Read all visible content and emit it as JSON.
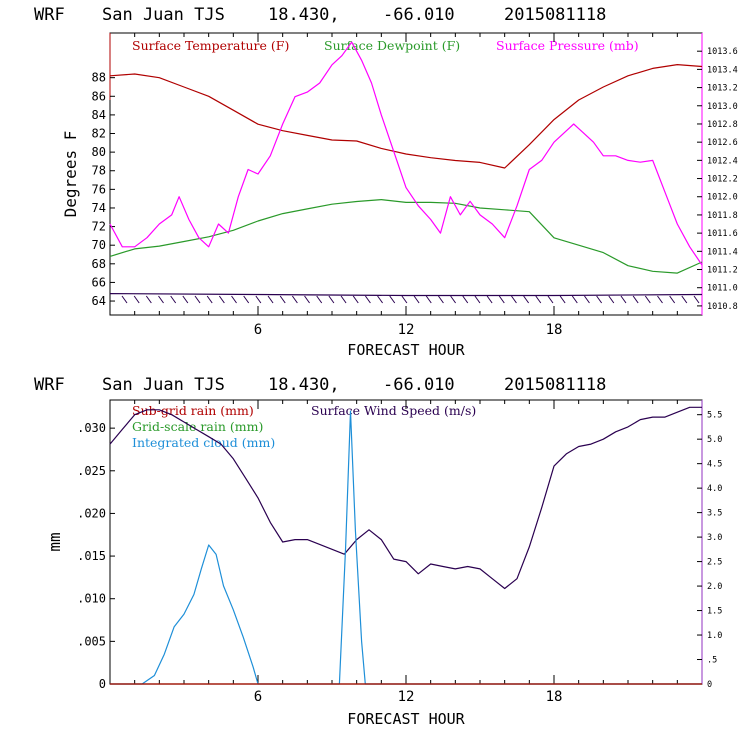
{
  "top": {
    "header": {
      "model": "WRF",
      "site": "San Juan TJS",
      "lat": "18.430,",
      "lon": "-66.010",
      "run": "2015081118"
    },
    "xlabel": "FORECAST HOUR",
    "ylabel": "Degrees F",
    "legend": [
      {
        "label": "Surface Temperature (F)",
        "color": "#b00000"
      },
      {
        "label": "Surface Dewpoint (F)",
        "color": "#2a9a2a"
      },
      {
        "label": "Surface Pressure (mb)",
        "color": "#ff00ff"
      }
    ]
  },
  "bottom": {
    "header": {
      "model": "WRF",
      "site": "San Juan TJS",
      "lat": "18.430,",
      "lon": "-66.010",
      "run": "2015081118"
    },
    "xlabel": "FORECAST HOUR",
    "ylabel": "mm",
    "legend": [
      {
        "label": "Sub-grid rain (mm)",
        "color": "#b00000"
      },
      {
        "label": "Surface Wind Speed (m/s)",
        "color": "#2a0050"
      },
      {
        "label": "Grid-scale rain (mm)",
        "color": "#2a9a2a"
      },
      {
        "label": "Integrated cloud (mm)",
        "color": "#1e8fd8"
      }
    ]
  },
  "chart_data": [
    {
      "type": "line",
      "xlabel": "FORECAST HOUR",
      "ylabel": "Degrees F",
      "xlim": [
        0,
        24
      ],
      "xticks": [
        6,
        12,
        18
      ],
      "ylim": [
        62.5,
        92.8
      ],
      "yticks": [
        64,
        66,
        68,
        70,
        72,
        74,
        76,
        78,
        80,
        82,
        84,
        86,
        88
      ],
      "y2lim": [
        1010.7,
        1013.8
      ],
      "y2ticks": [
        "1010.8",
        "1011.0",
        "1011.2",
        "1011.4",
        "1011.6",
        "1011.8",
        "1012.0",
        "1012.2",
        "1012.4",
        "1012.6",
        "1012.8",
        "1013.0",
        "1013.2",
        "1013.4",
        "1013.6"
      ],
      "series": [
        {
          "name": "Surface Temperature (F)",
          "axis": "left",
          "color": "#b00000",
          "x": [
            0,
            1,
            2,
            3,
            4,
            5,
            6,
            7,
            8,
            9,
            10,
            11,
            12,
            13,
            14,
            15,
            16,
            17,
            18,
            19,
            20,
            21,
            22,
            23,
            24
          ],
          "y": [
            88.2,
            88.4,
            88,
            87,
            86,
            84.5,
            83,
            82.3,
            81.8,
            81.3,
            81.2,
            80.4,
            79.8,
            79.4,
            79.1,
            78.9,
            78.3,
            80.8,
            83.5,
            85.6,
            87,
            88.2,
            89,
            89.4,
            89.2
          ]
        },
        {
          "name": "Surface Dewpoint (F)",
          "axis": "left",
          "color": "#2a9a2a",
          "x": [
            0,
            1,
            2,
            3,
            4,
            5,
            6,
            7,
            8,
            9,
            10,
            11,
            12,
            13,
            14,
            15,
            16,
            17,
            18,
            19,
            20,
            21,
            22,
            23,
            24
          ],
          "y": [
            68.8,
            69.6,
            69.9,
            70.4,
            70.9,
            71.6,
            72.6,
            73.4,
            73.9,
            74.4,
            74.7,
            74.9,
            74.6,
            74.6,
            74.5,
            74,
            73.8,
            73.6,
            70.8,
            70,
            69.2,
            67.8,
            67.2,
            67,
            68.2
          ]
        },
        {
          "name": "Surface Pressure (mb)",
          "axis": "right",
          "color": "#ff00ff",
          "x": [
            0,
            0.5,
            1,
            1.5,
            2,
            2.5,
            2.8,
            3.2,
            3.6,
            4,
            4.4,
            4.8,
            5.2,
            5.6,
            6,
            6.5,
            7,
            7.5,
            8,
            8.5,
            9,
            9.4,
            9.8,
            10.2,
            10.6,
            11,
            11.5,
            12,
            12.5,
            13,
            13.4,
            13.8,
            14.2,
            14.6,
            15,
            15.5,
            16,
            16.5,
            17,
            17.5,
            18,
            18.4,
            18.8,
            19.2,
            19.6,
            20,
            20.5,
            21,
            21.5,
            22,
            22.5,
            23,
            23.5,
            24
          ],
          "y": [
            1011.7,
            1011.45,
            1011.45,
            1011.55,
            1011.7,
            1011.8,
            1012.0,
            1011.75,
            1011.55,
            1011.45,
            1011.7,
            1011.6,
            1012.0,
            1012.3,
            1012.25,
            1012.45,
            1012.8,
            1013.1,
            1013.15,
            1013.25,
            1013.45,
            1013.55,
            1013.7,
            1013.5,
            1013.25,
            1012.9,
            1012.5,
            1012.1,
            1011.9,
            1011.75,
            1011.6,
            1012.0,
            1011.8,
            1011.95,
            1011.8,
            1011.7,
            1011.55,
            1011.9,
            1012.3,
            1012.4,
            1012.6,
            1012.7,
            1012.8,
            1012.7,
            1012.6,
            1012.45,
            1012.45,
            1012.4,
            1012.38,
            1012.4,
            1012.05,
            1011.7,
            1011.45,
            1011.25
          ]
        },
        {
          "name": "",
          "axis": "left",
          "color": "#2a0050",
          "x": [
            0,
            6,
            12,
            18,
            24
          ],
          "y": [
            64.8,
            64.7,
            64.6,
            64.6,
            64.7
          ]
        }
      ]
    },
    {
      "type": "line",
      "xlabel": "FORECAST HOUR",
      "ylabel": "mm",
      "xlim": [
        0,
        24
      ],
      "xticks": [
        6,
        12,
        18
      ],
      "ylim": [
        0,
        0.0333
      ],
      "yticks": [
        "0",
        ".005",
        ".010",
        ".015",
        ".020",
        ".025",
        ".030"
      ],
      "y2lim": [
        0,
        5.8
      ],
      "y2ticks": [
        "0",
        ".5",
        "1.0",
        "1.5",
        "2.0",
        "2.5",
        "3.0",
        "3.5",
        "4.0",
        "4.5",
        "5.0",
        "5.5"
      ],
      "series": [
        {
          "name": "Surface Wind Speed (m/s)",
          "axis": "right",
          "color": "#2a0050",
          "x": [
            0,
            0.5,
            1,
            1.5,
            2,
            2.5,
            3,
            3.5,
            4,
            4.5,
            5,
            5.5,
            6,
            6.5,
            7,
            7.5,
            8,
            8.5,
            9,
            9.5,
            10,
            10.5,
            11,
            11.5,
            12,
            12.5,
            13,
            13.5,
            14,
            14.5,
            15,
            15.5,
            16,
            16.5,
            17,
            17.5,
            18,
            18.5,
            19,
            19.5,
            20,
            20.5,
            21,
            21.5,
            22,
            22.5,
            23,
            23.5,
            24
          ],
          "y": [
            4.9,
            5.2,
            5.5,
            5.6,
            5.6,
            5.5,
            5.35,
            5.2,
            5.05,
            4.9,
            4.6,
            4.2,
            3.8,
            3.3,
            2.9,
            2.95,
            2.95,
            2.85,
            2.75,
            2.65,
            2.95,
            3.15,
            2.95,
            2.55,
            2.5,
            2.25,
            2.45,
            2.4,
            2.35,
            2.4,
            2.35,
            2.15,
            1.95,
            2.15,
            2.8,
            3.6,
            4.45,
            4.7,
            4.85,
            4.9,
            5.0,
            5.15,
            5.25,
            5.4,
            5.45,
            5.45,
            5.55,
            5.65,
            5.65
          ]
        },
        {
          "name": "Integrated cloud (mm)",
          "axis": "left",
          "color": "#1e8fd8",
          "x": [
            0,
            0.8,
            1.3,
            1.8,
            2.2,
            2.6,
            3,
            3.4,
            3.7,
            4,
            4.3,
            4.6,
            5,
            5.4,
            5.8,
            6.0,
            9.0,
            9.3,
            9.55,
            9.75,
            9.95,
            10.2,
            10.35,
            24
          ],
          "y": [
            0,
            0,
            0,
            0.001,
            0.0035,
            0.0067,
            0.0082,
            0.0105,
            0.0135,
            0.0163,
            0.0152,
            0.0115,
            0.0087,
            0.0055,
            0.002,
            0,
            0,
            0,
            0.016,
            0.032,
            0.018,
            0.005,
            0,
            0
          ]
        },
        {
          "name": "Grid-scale rain (mm)",
          "axis": "left",
          "color": "#2a9a2a",
          "x": [
            0,
            24
          ],
          "y": [
            0,
            0
          ]
        },
        {
          "name": "Sub-grid rain (mm)",
          "axis": "left",
          "color": "#b00000",
          "x": [
            0,
            24
          ],
          "y": [
            0,
            0
          ]
        }
      ]
    }
  ]
}
